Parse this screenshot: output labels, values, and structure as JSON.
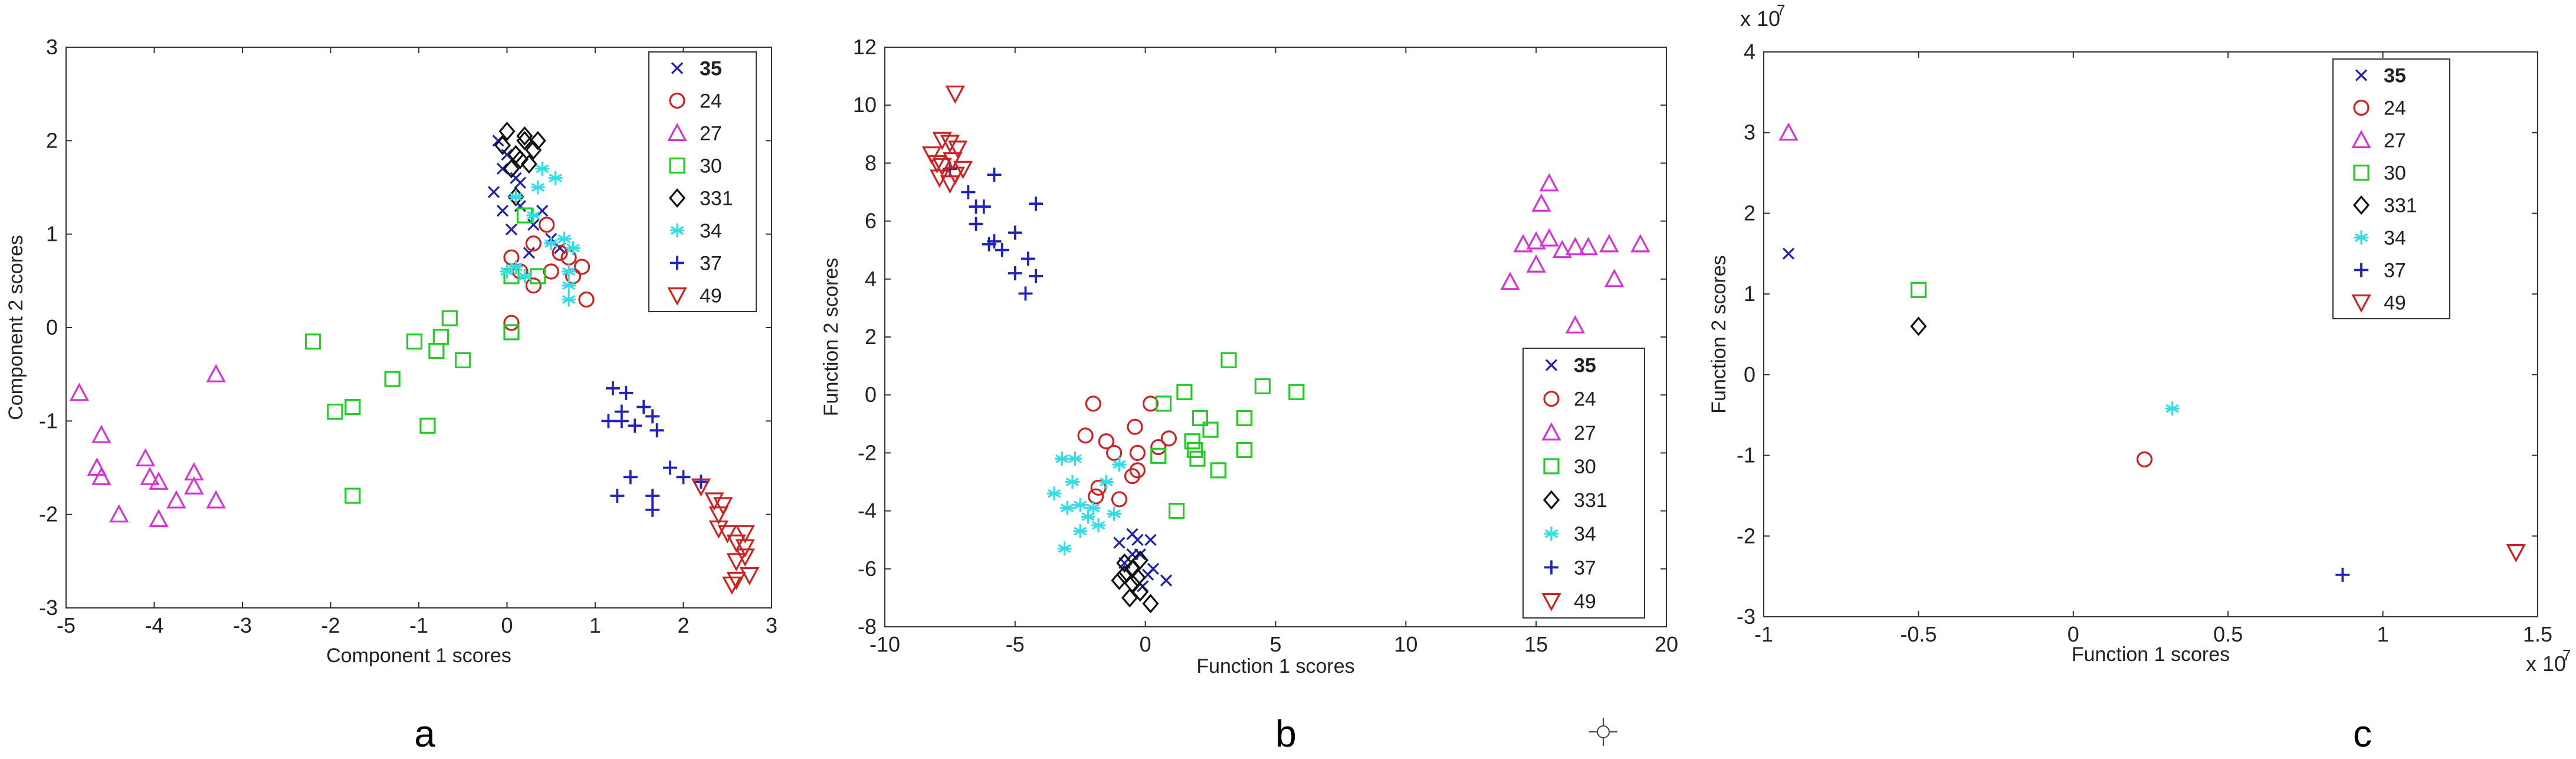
{
  "colors": {
    "35": "#1f1fb4",
    "24": "#cc2222",
    "27": "#d633d6",
    "30": "#22cc22",
    "331": "#111111",
    "34": "#33dde6",
    "37": "#1f22bf",
    "49": "#cc2222"
  },
  "chart_data": [
    {
      "type": "scatter",
      "panel_label": "a",
      "xlabel": "Component 1 scores",
      "ylabel": "Component 2 scores",
      "xlim": [
        -5,
        3
      ],
      "ylim": [
        -3,
        3
      ],
      "xticks": [
        -5,
        -4,
        -3,
        -2,
        -1,
        0,
        1,
        2,
        3
      ],
      "yticks": [
        -3,
        -2,
        -1,
        0,
        1,
        2,
        3
      ],
      "legend_position": "top-right",
      "series": [
        {
          "name": "35",
          "marker": "x",
          "points": [
            [
              -0.1,
              2.0
            ],
            [
              0.0,
              1.85
            ],
            [
              -0.05,
              1.7
            ],
            [
              0.1,
              1.6
            ],
            [
              -0.15,
              1.45
            ],
            [
              -0.05,
              1.25
            ],
            [
              0.15,
              1.55
            ],
            [
              0.3,
              1.1
            ],
            [
              0.5,
              0.95
            ],
            [
              0.25,
              0.8
            ],
            [
              0.4,
              1.25
            ],
            [
              0.05,
              1.05
            ],
            [
              0.6,
              0.85
            ],
            [
              0.15,
              1.3
            ]
          ]
        },
        {
          "name": "24",
          "marker": "o",
          "points": [
            [
              0.05,
              0.75
            ],
            [
              0.15,
              0.6
            ],
            [
              0.3,
              0.9
            ],
            [
              0.45,
              1.1
            ],
            [
              0.6,
              0.8
            ],
            [
              0.75,
              0.55
            ],
            [
              0.85,
              0.65
            ],
            [
              0.9,
              0.3
            ],
            [
              0.5,
              0.6
            ],
            [
              0.3,
              0.45
            ],
            [
              0.05,
              0.05
            ],
            [
              0.7,
              0.75
            ]
          ]
        },
        {
          "name": "27",
          "marker": "^",
          "points": [
            [
              -4.85,
              -0.7
            ],
            [
              -4.6,
              -1.15
            ],
            [
              -4.65,
              -1.5
            ],
            [
              -4.6,
              -1.6
            ],
            [
              -4.4,
              -2.0
            ],
            [
              -4.1,
              -1.4
            ],
            [
              -4.05,
              -1.6
            ],
            [
              -3.95,
              -2.05
            ],
            [
              -3.95,
              -1.65
            ],
            [
              -3.75,
              -1.85
            ],
            [
              -3.55,
              -1.55
            ],
            [
              -3.55,
              -1.7
            ],
            [
              -3.3,
              -0.5
            ],
            [
              -3.3,
              -1.85
            ]
          ]
        },
        {
          "name": "30",
          "marker": "s",
          "points": [
            [
              -2.2,
              -0.15
            ],
            [
              -1.95,
              -0.9
            ],
            [
              -1.75,
              -0.85
            ],
            [
              -1.75,
              -1.8
            ],
            [
              -1.3,
              -0.55
            ],
            [
              -1.05,
              -0.15
            ],
            [
              -0.9,
              -1.05
            ],
            [
              -0.8,
              -0.25
            ],
            [
              -0.75,
              -0.1
            ],
            [
              -0.65,
              0.1
            ],
            [
              -0.5,
              -0.35
            ],
            [
              0.05,
              -0.05
            ],
            [
              0.05,
              0.55
            ],
            [
              0.2,
              1.2
            ],
            [
              0.35,
              0.55
            ]
          ]
        },
        {
          "name": "331",
          "marker": "d",
          "points": [
            [
              -0.05,
              1.95
            ],
            [
              0.1,
              1.85
            ],
            [
              0.2,
              2.0
            ],
            [
              0.3,
              1.9
            ],
            [
              0.15,
              1.8
            ],
            [
              0.0,
              2.1
            ],
            [
              0.25,
              1.75
            ],
            [
              0.05,
              1.7
            ],
            [
              0.35,
              2.0
            ],
            [
              0.1,
              1.4
            ],
            [
              0.2,
              2.05
            ]
          ]
        },
        {
          "name": "34",
          "marker": "*",
          "points": [
            [
              0.4,
              1.7
            ],
            [
              0.55,
              1.6
            ],
            [
              0.35,
              1.5
            ],
            [
              0.1,
              1.4
            ],
            [
              0.3,
              1.2
            ],
            [
              0.5,
              0.9
            ],
            [
              0.75,
              0.85
            ],
            [
              0.65,
              0.95
            ],
            [
              0.7,
              0.6
            ],
            [
              0.7,
              0.45
            ],
            [
              0.7,
              0.3
            ],
            [
              0.2,
              0.55
            ],
            [
              0.1,
              0.65
            ],
            [
              0.0,
              0.6
            ]
          ]
        },
        {
          "name": "37",
          "marker": "+",
          "points": [
            [
              1.2,
              -0.65
            ],
            [
              1.35,
              -0.7
            ],
            [
              1.3,
              -0.9
            ],
            [
              1.55,
              -0.85
            ],
            [
              1.65,
              -0.95
            ],
            [
              1.15,
              -1.0
            ],
            [
              1.3,
              -1.0
            ],
            [
              1.45,
              -1.05
            ],
            [
              1.7,
              -1.1
            ],
            [
              1.4,
              -1.6
            ],
            [
              1.25,
              -1.8
            ],
            [
              1.65,
              -1.8
            ],
            [
              1.65,
              -1.95
            ],
            [
              1.85,
              -1.5
            ],
            [
              2.0,
              -1.6
            ],
            [
              2.2,
              -1.65
            ]
          ]
        },
        {
          "name": "49",
          "marker": "v",
          "points": [
            [
              2.2,
              -1.7
            ],
            [
              2.35,
              -1.85
            ],
            [
              2.4,
              -2.0
            ],
            [
              2.45,
              -1.9
            ],
            [
              2.4,
              -2.15
            ],
            [
              2.5,
              -2.2
            ],
            [
              2.6,
              -2.3
            ],
            [
              2.7,
              -2.35
            ],
            [
              2.6,
              -2.5
            ],
            [
              2.7,
              -2.45
            ],
            [
              2.75,
              -2.65
            ],
            [
              2.6,
              -2.7
            ],
            [
              2.55,
              -2.75
            ],
            [
              2.7,
              -2.2
            ]
          ]
        }
      ]
    },
    {
      "type": "scatter",
      "panel_label": "b",
      "xlabel": "Function 1 scores",
      "ylabel": "Function 2 scores",
      "xlim": [
        -10,
        20
      ],
      "ylim": [
        -8,
        12
      ],
      "xticks": [
        -10,
        -5,
        0,
        5,
        10,
        15,
        20
      ],
      "yticks": [
        -8,
        -6,
        -4,
        -2,
        0,
        2,
        4,
        6,
        8,
        10,
        12
      ],
      "legend_position": "bottom-right",
      "series": [
        {
          "name": "35",
          "marker": "x",
          "points": [
            [
              -0.5,
              -4.8
            ],
            [
              -0.3,
              -5.0
            ],
            [
              -0.2,
              -5.5
            ],
            [
              -0.8,
              -5.8
            ],
            [
              0.1,
              -6.2
            ],
            [
              0.3,
              -6.0
            ],
            [
              0.2,
              -5.0
            ],
            [
              -1.0,
              -5.1
            ],
            [
              -0.5,
              -5.5
            ],
            [
              0.8,
              -6.4
            ],
            [
              -0.1,
              -6.6
            ]
          ]
        },
        {
          "name": "24",
          "marker": "o",
          "points": [
            [
              -2.0,
              -0.3
            ],
            [
              -2.3,
              -1.4
            ],
            [
              -1.5,
              -1.6
            ],
            [
              -1.2,
              -2.0
            ],
            [
              -0.3,
              -2.0
            ],
            [
              0.5,
              -1.8
            ],
            [
              0.9,
              -1.5
            ],
            [
              -0.5,
              -2.8
            ],
            [
              -0.3,
              -2.6
            ],
            [
              -1.8,
              -3.2
            ],
            [
              -1.9,
              -3.5
            ],
            [
              -1.0,
              -3.6
            ],
            [
              0.2,
              -0.3
            ],
            [
              -0.4,
              -1.1
            ]
          ]
        },
        {
          "name": "27",
          "marker": "^",
          "points": [
            [
              14.0,
              3.9
            ],
            [
              14.5,
              5.2
            ],
            [
              15.0,
              5.3
            ],
            [
              15.2,
              6.6
            ],
            [
              15.5,
              7.3
            ],
            [
              15.0,
              4.5
            ],
            [
              15.5,
              5.4
            ],
            [
              16.0,
              5.0
            ],
            [
              16.5,
              5.1
            ],
            [
              17.0,
              5.1
            ],
            [
              17.8,
              5.2
            ],
            [
              18.0,
              4.0
            ],
            [
              19.0,
              5.2
            ],
            [
              16.5,
              2.4
            ]
          ]
        },
        {
          "name": "30",
          "marker": "s",
          "points": [
            [
              0.7,
              -0.3
            ],
            [
              1.2,
              -4.0
            ],
            [
              1.5,
              0.1
            ],
            [
              1.8,
              -1.6
            ],
            [
              2.0,
              -2.2
            ],
            [
              2.1,
              -0.8
            ],
            [
              2.5,
              -1.2
            ],
            [
              2.8,
              -2.6
            ],
            [
              3.2,
              1.2
            ],
            [
              3.8,
              -0.8
            ],
            [
              3.8,
              -1.9
            ],
            [
              4.5,
              0.3
            ],
            [
              5.8,
              0.1
            ],
            [
              0.5,
              -2.1
            ],
            [
              1.9,
              -1.9
            ]
          ]
        },
        {
          "name": "331",
          "marker": "d",
          "points": [
            [
              -0.8,
              -6.2
            ],
            [
              -0.5,
              -6.5
            ],
            [
              -0.2,
              -6.8
            ],
            [
              0.2,
              -7.2
            ],
            [
              -0.5,
              -6.0
            ],
            [
              -0.2,
              -5.7
            ],
            [
              -1.0,
              -6.4
            ],
            [
              -0.8,
              -5.8
            ],
            [
              -0.6,
              -7.0
            ],
            [
              -0.3,
              -6.3
            ]
          ]
        },
        {
          "name": "34",
          "marker": "*",
          "points": [
            [
              -3.5,
              -3.4
            ],
            [
              -3.2,
              -2.2
            ],
            [
              -2.7,
              -2.2
            ],
            [
              -3.0,
              -3.9
            ],
            [
              -3.1,
              -5.3
            ],
            [
              -2.5,
              -3.8
            ],
            [
              -2.2,
              -4.2
            ],
            [
              -2.0,
              -3.9
            ],
            [
              -1.8,
              -4.5
            ],
            [
              -1.2,
              -4.1
            ],
            [
              -1.5,
              -3.0
            ],
            [
              -2.5,
              -4.7
            ],
            [
              -2.8,
              -3.0
            ],
            [
              -1.0,
              -2.4
            ]
          ]
        },
        {
          "name": "37",
          "marker": "+",
          "points": [
            [
              -7.5,
              7.8
            ],
            [
              -6.8,
              7.0
            ],
            [
              -6.2,
              6.5
            ],
            [
              -5.8,
              7.6
            ],
            [
              -6.5,
              5.9
            ],
            [
              -5.5,
              5.0
            ],
            [
              -5.0,
              4.2
            ],
            [
              -4.5,
              4.7
            ],
            [
              -4.6,
              3.5
            ],
            [
              -4.2,
              6.6
            ],
            [
              -5.0,
              5.6
            ],
            [
              -5.8,
              5.3
            ],
            [
              -6.5,
              6.5
            ],
            [
              -4.2,
              4.1
            ],
            [
              -6.0,
              5.2
            ]
          ]
        },
        {
          "name": "49",
          "marker": "v",
          "points": [
            [
              -7.5,
              8.7
            ],
            [
              -7.2,
              8.5
            ],
            [
              -7.0,
              7.8
            ],
            [
              -7.5,
              7.3
            ],
            [
              -8.0,
              8.0
            ],
            [
              -8.2,
              8.3
            ],
            [
              -7.8,
              8.8
            ],
            [
              -7.4,
              8.1
            ],
            [
              -7.3,
              7.6
            ],
            [
              -7.9,
              7.5
            ],
            [
              -7.3,
              10.4
            ],
            [
              -7.8,
              7.9
            ]
          ]
        }
      ]
    },
    {
      "type": "scatter",
      "panel_label": "c",
      "xlabel": "Function 1 scores",
      "ylabel": "Function 2 scores",
      "x_multiplier": "x 10",
      "y_multiplier": "x 10",
      "multiplier_exponent": "7",
      "xlim": [
        -1,
        1.5
      ],
      "ylim": [
        -3,
        4
      ],
      "xticks": [
        -1,
        -0.5,
        0,
        0.5,
        1,
        1.5
      ],
      "yticks": [
        -3,
        -2,
        -1,
        0,
        1,
        2,
        3,
        4
      ],
      "legend_position": "top-left",
      "series": [
        {
          "name": "35",
          "marker": "x",
          "points": [
            [
              -0.92,
              1.5
            ]
          ]
        },
        {
          "name": "24",
          "marker": "o",
          "points": [
            [
              0.23,
              -1.05
            ]
          ]
        },
        {
          "name": "27",
          "marker": "^",
          "points": [
            [
              -0.92,
              3.0
            ]
          ]
        },
        {
          "name": "30",
          "marker": "s",
          "points": [
            [
              -0.5,
              1.05
            ]
          ]
        },
        {
          "name": "331",
          "marker": "d",
          "points": [
            [
              -0.5,
              0.6
            ]
          ]
        },
        {
          "name": "34",
          "marker": "*",
          "points": [
            [
              0.32,
              -0.42
            ]
          ]
        },
        {
          "name": "37",
          "marker": "+",
          "points": [
            [
              0.87,
              -2.48
            ]
          ]
        },
        {
          "name": "49",
          "marker": "v",
          "points": [
            [
              1.43,
              -2.2
            ]
          ]
        }
      ]
    }
  ]
}
